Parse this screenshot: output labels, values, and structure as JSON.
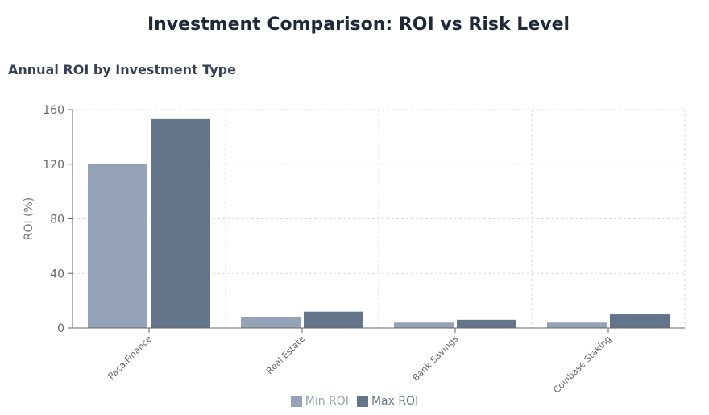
{
  "header": {
    "title": "Investment Comparison: ROI vs Risk Level",
    "subtitle": "Annual ROI by Investment Type"
  },
  "chart_data": {
    "type": "bar",
    "title": "Annual ROI by Investment Type",
    "ylabel": "ROI (%)",
    "xlabel": "",
    "categories": [
      "Paca.Finance",
      "Real Estate",
      "Bank Savings",
      "Coinbase Staking"
    ],
    "series": [
      {
        "name": "Min ROI",
        "values": [
          120,
          8,
          4,
          4
        ],
        "color": "#94a3b8"
      },
      {
        "name": "Max ROI",
        "values": [
          153,
          12,
          6,
          10
        ],
        "color": "#64748b"
      }
    ],
    "ylim": [
      0,
      160
    ],
    "yticks": [
      0,
      40,
      80,
      120,
      160
    ],
    "grid": true,
    "legend_position": "bottom"
  }
}
